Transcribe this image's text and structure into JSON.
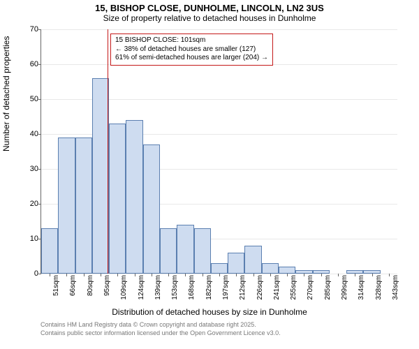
{
  "title": {
    "line1": "15, BISHOP CLOSE, DUNHOLME, LINCOLN, LN2 3US",
    "line2": "Size of property relative to detached houses in Dunholme"
  },
  "ylabel": "Number of detached properties",
  "xlabel": "Distribution of detached houses by size in Dunholme",
  "annotation": {
    "line1": "15 BISHOP CLOSE: 101sqm",
    "line2": "← 38% of detached houses are smaller (127)",
    "line3": "61% of semi-detached houses are larger (204) →"
  },
  "footer": {
    "line1": "Contains HM Land Registry data © Crown copyright and database right 2025.",
    "line2": "Contains public sector information licensed under the Open Government Licence v3.0."
  },
  "chart": {
    "type": "histogram",
    "ylim": [
      0,
      70
    ],
    "ytick_step": 10,
    "yticks": [
      0,
      10,
      20,
      30,
      40,
      50,
      60,
      70
    ],
    "marker_x_value": 101,
    "x_range": [
      44,
      350
    ],
    "bar_fill": "#cedcf0",
    "bar_stroke": "#5b7fb0",
    "marker_color": "#c41818",
    "grid_color": "#e8e8e8",
    "background_color": "#ffffff",
    "axis_color": "#666666",
    "title_fontsize": 13,
    "label_fontsize": 12,
    "tick_fontsize": 10,
    "categories": [
      "51sqm",
      "66sqm",
      "80sqm",
      "95sqm",
      "109sqm",
      "124sqm",
      "139sqm",
      "153sqm",
      "168sqm",
      "182sqm",
      "197sqm",
      "212sqm",
      "226sqm",
      "241sqm",
      "255sqm",
      "270sqm",
      "285sqm",
      "299sqm",
      "314sqm",
      "328sqm",
      "343sqm"
    ],
    "values": [
      13,
      39,
      39,
      56,
      43,
      44,
      37,
      13,
      14,
      13,
      3,
      6,
      8,
      3,
      2,
      1,
      1,
      0,
      1,
      1,
      0
    ]
  }
}
